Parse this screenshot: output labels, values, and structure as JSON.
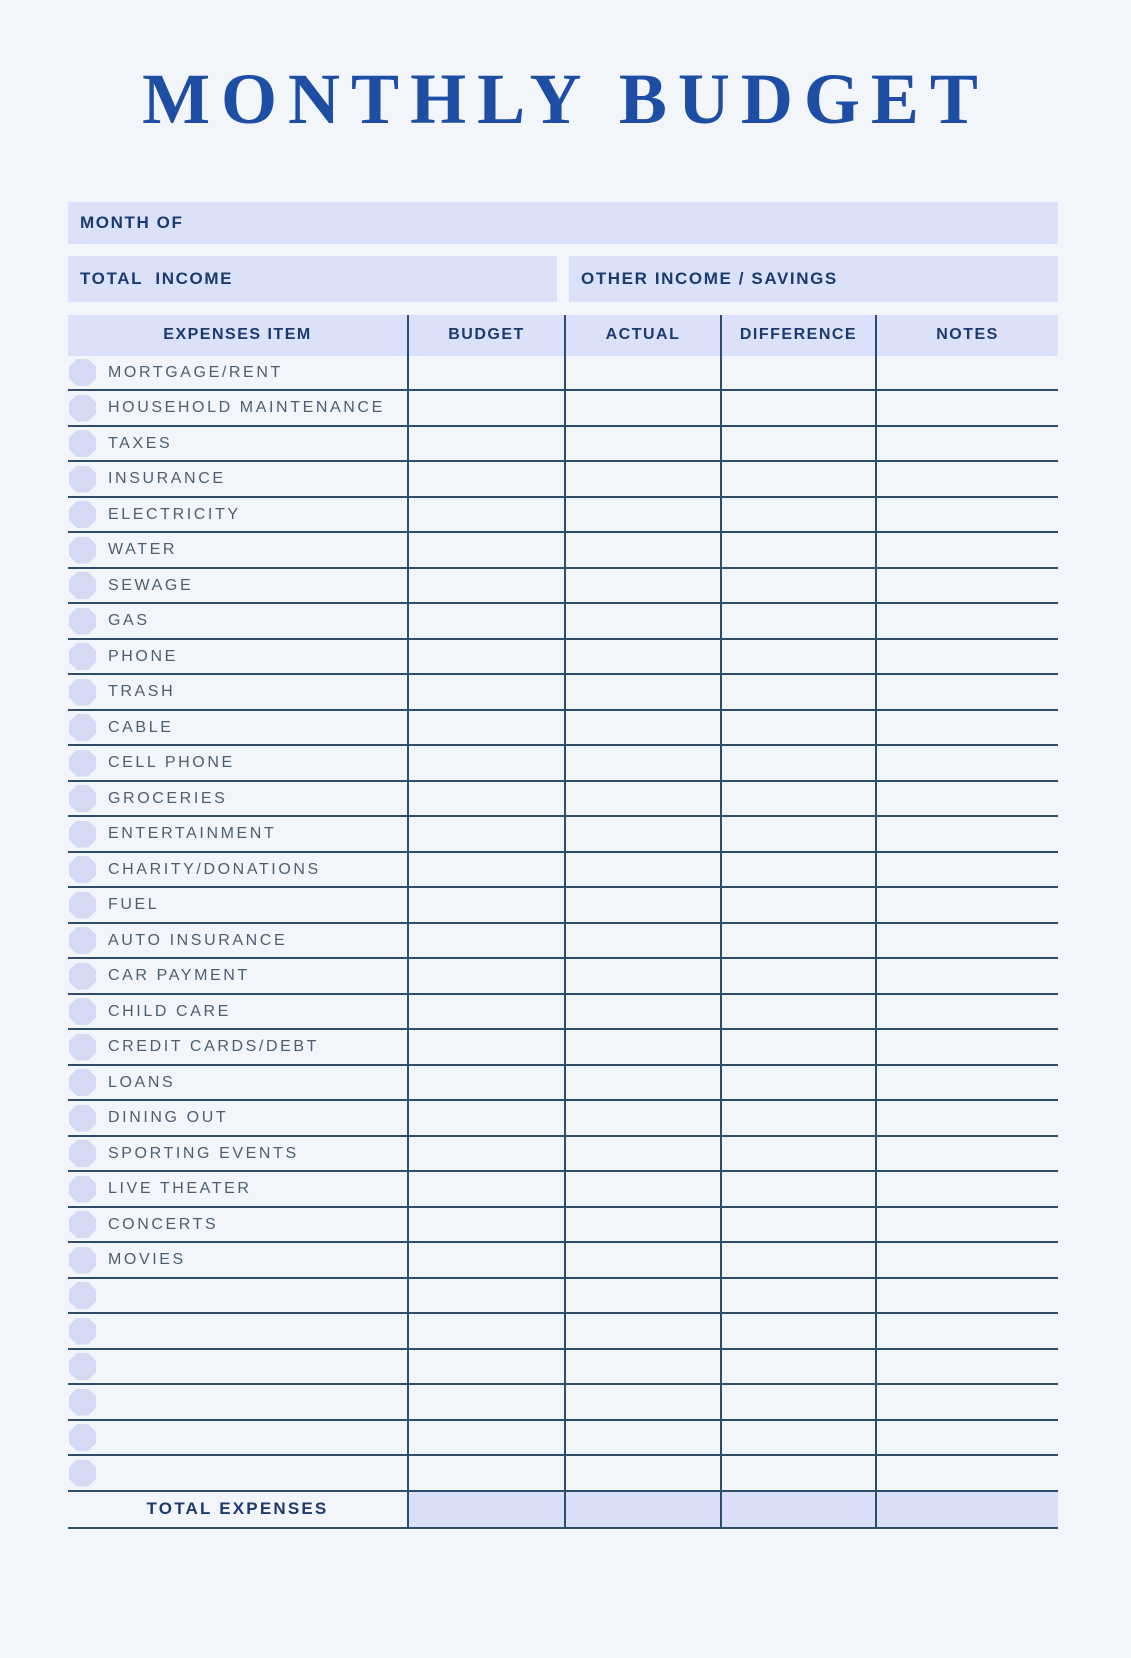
{
  "title": "MONTHLY BUDGET",
  "fields": {
    "month_of": "MONTH OF",
    "total_income": "TOTAL  INCOME",
    "other_income": "OTHER INCOME / SAVINGS"
  },
  "table": {
    "headers": [
      "EXPENSES ITEM",
      "BUDGET",
      "ACTUAL",
      "DIFFERENCE",
      "NOTES"
    ],
    "items": [
      "MORTGAGE/RENT",
      "HOUSEHOLD MAINTENANCE",
      "TAXES",
      "INSURANCE",
      "ELECTRICITY",
      "WATER",
      "SEWAGE",
      "GAS",
      "PHONE",
      "TRASH",
      "CABLE",
      "CELL PHONE",
      "GROCERIES",
      "ENTERTAINMENT",
      "CHARITY/DONATIONS",
      "FUEL",
      "AUTO INSURANCE",
      "CAR PAYMENT",
      "CHILD CARE",
      "CREDIT CARDS/DEBT",
      "LOANS",
      "DINING OUT",
      "SPORTING EVENTS",
      "LIVE THEATER",
      "CONCERTS",
      "MOVIES"
    ],
    "empty_row_count": 6,
    "total_label": "TOTAL EXPENSES"
  },
  "colors": {
    "page_background": "#f2f5fa",
    "band_background": "#dbe1f8",
    "title_blue": "#1e4da4",
    "navy_text": "#1b3a70",
    "item_text": "#4b5f71",
    "grid_line": "#2e4c6b",
    "bullet": "#d4daf3",
    "total_cell_background": "#d9dff6"
  }
}
